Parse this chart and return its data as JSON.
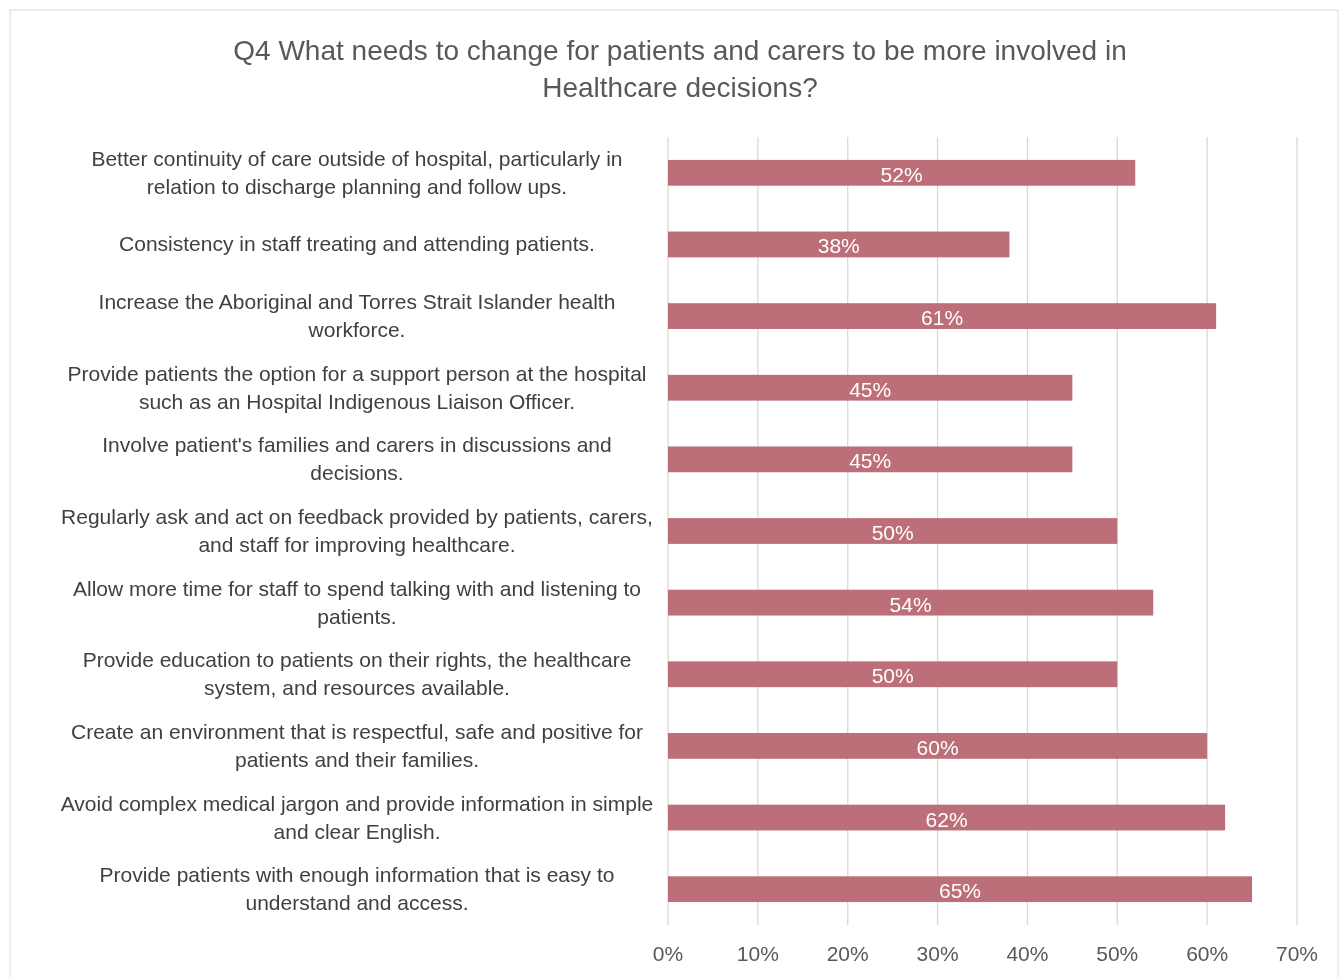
{
  "chart_data": {
    "type": "bar",
    "orientation": "horizontal",
    "title": "Q4 What needs to change for patients and carers to be more involved in Healthcare decisions?",
    "categories": [
      "Better continuity of care outside of hospital, particularly in relation to discharge planning and follow ups.",
      "Consistency in staff treating and attending patients.",
      "Increase the Aboriginal and Torres Strait Islander health workforce.",
      "Provide patients the option for a support person at the hospital such as an Hospital Indigenous Liaison Officer.",
      "Involve patient's families and carers in discussions and decisions.",
      "Regularly ask and act on feedback provided by patients, carers, and staff for improving healthcare.",
      "Allow more time for staff to spend talking with and listening to patients.",
      "Provide education to patients on their rights, the healthcare system, and resources available.",
      "Create an environment that is respectful, safe and positive for patients and their families.",
      "Avoid complex medical jargon and provide information in simple and clear English.",
      "Provide patients with enough information that is easy to understand and access."
    ],
    "values": [
      52,
      38,
      61,
      45,
      45,
      50,
      54,
      50,
      60,
      62,
      65
    ],
    "value_labels": [
      "52%",
      "38%",
      "61%",
      "45%",
      "45%",
      "50%",
      "54%",
      "50%",
      "60%",
      "62%",
      "65%"
    ],
    "color": "#bc6f78",
    "xlim": [
      0,
      70
    ],
    "xticks": [
      {
        "value": 0,
        "label": "0%"
      },
      {
        "value": 10,
        "label": "10%"
      },
      {
        "value": 20,
        "label": "20%"
      },
      {
        "value": 30,
        "label": "30%"
      },
      {
        "value": 40,
        "label": "40%"
      },
      {
        "value": 50,
        "label": "50%"
      },
      {
        "value": 60,
        "label": "60%"
      },
      {
        "value": 70,
        "label": "70%"
      }
    ],
    "grid": "x"
  }
}
